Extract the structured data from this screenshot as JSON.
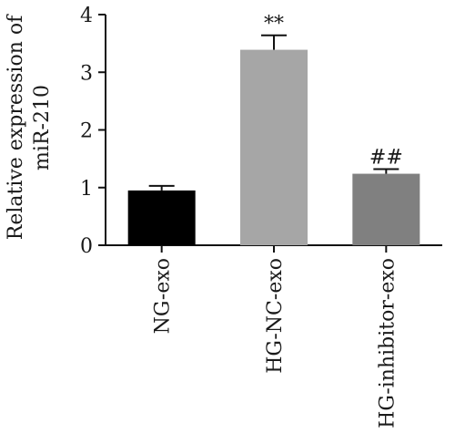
{
  "chart_data": {
    "type": "bar",
    "ylabel_lines": [
      "Relative expression of",
      "miR-210"
    ],
    "xlabel": "",
    "ylim": [
      0,
      4
    ],
    "yticks": [
      "0",
      "1",
      "2",
      "3",
      "4"
    ],
    "categories": [
      "NG-exo",
      "HG-NC-exo",
      "HG-inhibitor-exo"
    ],
    "values": [
      0.95,
      3.39,
      1.24
    ],
    "errors": [
      0.08,
      0.25,
      0.08
    ],
    "annotations": [
      "",
      "**",
      "##"
    ],
    "colors": [
      "#000000",
      "#a6a6a6",
      "#808080"
    ],
    "grid": false
  }
}
